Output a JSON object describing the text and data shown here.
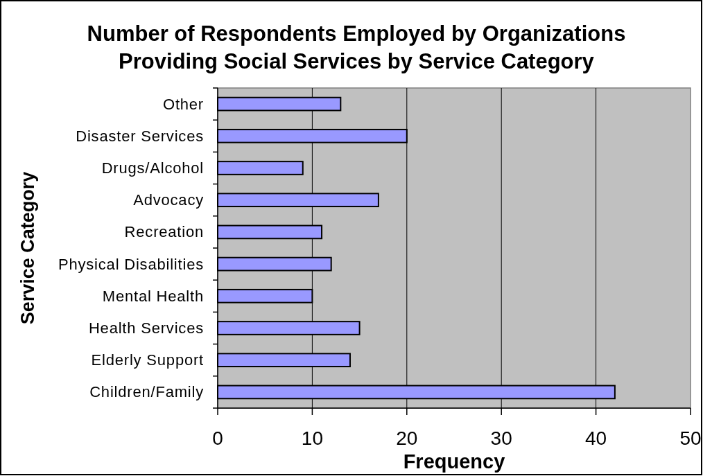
{
  "chart_data": {
    "type": "bar",
    "orientation": "horizontal",
    "title": "Number of Respondents Employed by Organizations\nProviding Social Services by Service Category",
    "xlabel": "Frequency",
    "ylabel": "Service Category",
    "categories": [
      "Other",
      "Disaster Services",
      "Drugs/Alcohol",
      "Advocacy",
      "Recreation",
      "Physical Disabilities",
      "Mental Health",
      "Health Services",
      "Elderly Support",
      "Children/Family"
    ],
    "values": [
      13,
      20,
      9,
      17,
      11,
      12,
      10,
      15,
      14,
      42
    ],
    "color": "#9999ff",
    "xlim": [
      0,
      50
    ],
    "xticks": [
      0,
      10,
      20,
      30,
      40,
      50
    ],
    "grid": "x"
  }
}
